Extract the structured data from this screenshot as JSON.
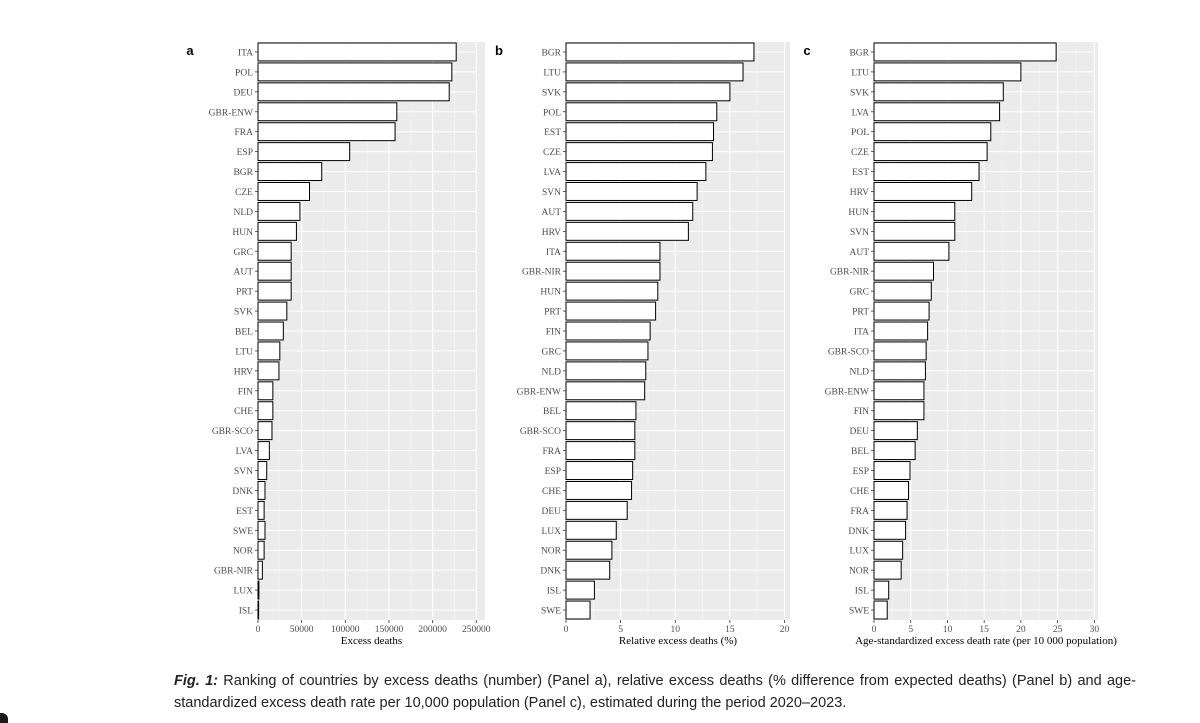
{
  "chart_data": [
    {
      "type": "bar",
      "orientation": "horizontal",
      "panel_label": "a",
      "xlabel": "Excess deaths",
      "xlim": [
        0,
        260000
      ],
      "xticks": [
        0,
        50000,
        100000,
        150000,
        200000,
        250000
      ],
      "categories": [
        "ITA",
        "POL",
        "DEU",
        "GBR-ENW",
        "FRA",
        "ESP",
        "BGR",
        "CZE",
        "NLD",
        "HUN",
        "GRC",
        "AUT",
        "PRT",
        "SVK",
        "BEL",
        "LTU",
        "HRV",
        "FIN",
        "CHE",
        "GBR-SCO",
        "LVA",
        "SVN",
        "DNK",
        "EST",
        "SWE",
        "NOR",
        "GBR-NIR",
        "LUX",
        "ISL"
      ],
      "values": [
        227000,
        222000,
        219000,
        159000,
        157000,
        105000,
        73000,
        59000,
        48000,
        44000,
        38000,
        38000,
        38000,
        33000,
        29000,
        25000,
        24000,
        17000,
        17000,
        16000,
        13000,
        10000,
        8000,
        7000,
        8000,
        7000,
        5000,
        1000,
        500
      ]
    },
    {
      "type": "bar",
      "orientation": "horizontal",
      "panel_label": "b",
      "xlabel": "Relative excess deaths (%)",
      "xlim": [
        0,
        20.5
      ],
      "xticks": [
        0,
        5,
        10,
        15,
        20
      ],
      "categories": [
        "BGR",
        "LTU",
        "SVK",
        "POL",
        "EST",
        "CZE",
        "LVA",
        "SVN",
        "AUT",
        "HRV",
        "ITA",
        "GBR-NIR",
        "HUN",
        "PRT",
        "FIN",
        "GRC",
        "NLD",
        "GBR-ENW",
        "BEL",
        "GBR-SCO",
        "FRA",
        "ESP",
        "CHE",
        "DEU",
        "LUX",
        "NOR",
        "DNK",
        "ISL",
        "SWE"
      ],
      "values": [
        17.2,
        16.2,
        15.0,
        13.8,
        13.5,
        13.4,
        12.8,
        12.0,
        11.6,
        11.2,
        8.6,
        8.6,
        8.4,
        8.2,
        7.7,
        7.5,
        7.3,
        7.2,
        6.4,
        6.3,
        6.3,
        6.1,
        6.0,
        5.6,
        4.6,
        4.2,
        4.0,
        2.6,
        2.2
      ]
    },
    {
      "type": "bar",
      "orientation": "horizontal",
      "panel_label": "c",
      "xlabel": "Age-standardized excess death rate (per 10 000 population)",
      "xlim": [
        0,
        30.5
      ],
      "xticks": [
        0,
        5,
        10,
        15,
        20,
        25,
        30
      ],
      "categories": [
        "BGR",
        "LTU",
        "SVK",
        "LVA",
        "POL",
        "CZE",
        "EST",
        "HRV",
        "HUN",
        "SVN",
        "AUT",
        "GBR-NIR",
        "GRC",
        "PRT",
        "ITA",
        "GBR-SCO",
        "NLD",
        "GBR-ENW",
        "FIN",
        "DEU",
        "BEL",
        "ESP",
        "CHE",
        "FRA",
        "DNK",
        "LUX",
        "NOR",
        "ISL",
        "SWE"
      ],
      "values": [
        24.8,
        20.0,
        17.6,
        17.1,
        15.9,
        15.4,
        14.3,
        13.3,
        11.0,
        11.0,
        10.2,
        8.1,
        7.8,
        7.5,
        7.3,
        7.1,
        7.0,
        6.8,
        6.8,
        5.9,
        5.6,
        4.9,
        4.7,
        4.5,
        4.3,
        3.9,
        3.7,
        2.0,
        1.8
      ]
    }
  ],
  "caption": {
    "label": "Fig. 1:",
    "text": "Ranking of countries by excess deaths (number) (Panel a), relative excess deaths (% difference from expected deaths) (Panel b) and age-standardized excess death rate per 10,000 population (Panel c), estimated during the period 2020–2023."
  },
  "colors": {
    "panel_bg": "#ebebeb",
    "grid_major": "#ffffff",
    "grid_minor": "#f5f5f5",
    "bar_fill": "#ffffff",
    "bar_stroke": "#000000",
    "text": "#4d4d4d"
  }
}
